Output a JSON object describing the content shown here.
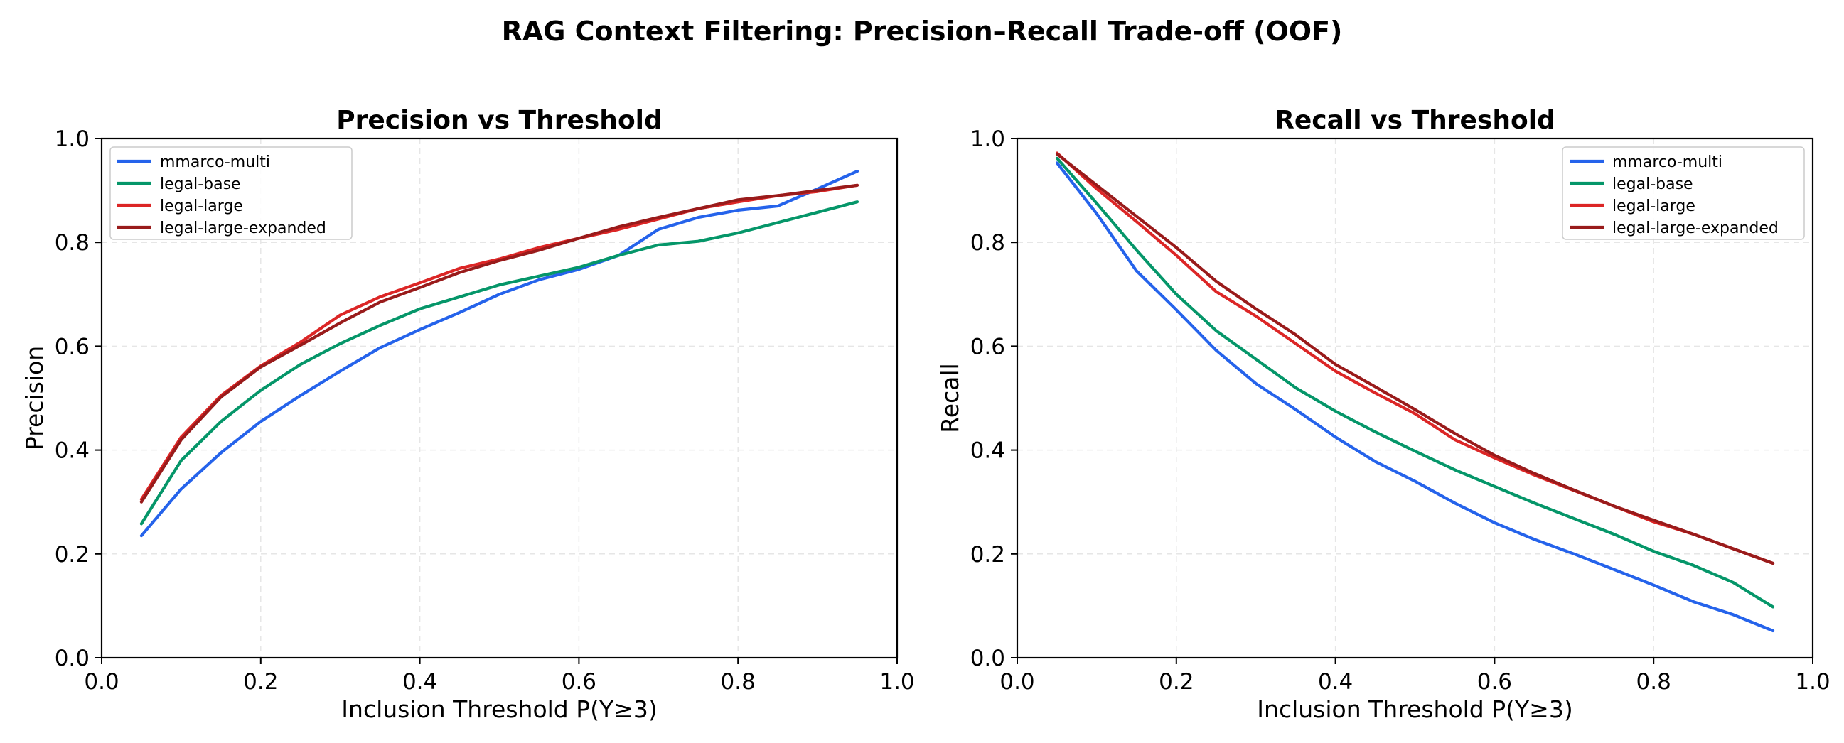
{
  "suptitle": "RAG Context Filtering: Precision–Recall Trade-off (OOF)",
  "colors": {
    "mmarco-multi": "#2563eb",
    "legal-base": "#059669",
    "legal-large": "#dc2626",
    "legal-large-expanded": "#991b1b"
  },
  "chart_data": [
    {
      "type": "line",
      "title": "Precision vs Threshold",
      "xlabel": "Inclusion Threshold P(Y≥3)",
      "ylabel": "Precision",
      "xlim": [
        0.0,
        1.0
      ],
      "ylim": [
        0.0,
        1.0
      ],
      "xticks": [
        0.0,
        0.2,
        0.4,
        0.6,
        0.8,
        1.0
      ],
      "xtick_labels": [
        "0.0",
        "0.2",
        "0.4",
        "0.6",
        "0.8",
        "1.0"
      ],
      "yticks": [
        0.0,
        0.2,
        0.4,
        0.6,
        0.8,
        1.0
      ],
      "ytick_labels": [
        "0.0",
        "0.2",
        "0.4",
        "0.6",
        "0.8",
        "1.0"
      ],
      "grid": true,
      "legend_position": "upper left",
      "x": [
        0.05,
        0.1,
        0.15,
        0.2,
        0.25,
        0.3,
        0.35,
        0.4,
        0.45,
        0.5,
        0.55,
        0.6,
        0.65,
        0.7,
        0.75,
        0.8,
        0.85,
        0.9,
        0.95
      ],
      "series": [
        {
          "name": "mmarco-multi",
          "values": [
            0.235,
            0.325,
            0.395,
            0.455,
            0.505,
            0.552,
            0.597,
            0.632,
            0.665,
            0.7,
            0.728,
            0.748,
            0.775,
            0.825,
            0.848,
            0.862,
            0.87,
            0.903,
            0.937
          ]
        },
        {
          "name": "legal-base",
          "values": [
            0.258,
            0.38,
            0.455,
            0.515,
            0.565,
            0.605,
            0.64,
            0.672,
            0.695,
            0.718,
            0.735,
            0.752,
            0.775,
            0.795,
            0.802,
            0.818,
            0.838,
            0.858,
            0.878
          ]
        },
        {
          "name": "legal-large",
          "values": [
            0.305,
            0.425,
            0.505,
            0.562,
            0.608,
            0.66,
            0.695,
            0.722,
            0.75,
            0.768,
            0.79,
            0.808,
            0.825,
            0.845,
            0.865,
            0.878,
            0.89,
            0.898,
            0.91
          ]
        },
        {
          "name": "legal-large-expanded",
          "values": [
            0.3,
            0.42,
            0.502,
            0.56,
            0.602,
            0.645,
            0.685,
            0.713,
            0.742,
            0.765,
            0.785,
            0.808,
            0.83,
            0.848,
            0.865,
            0.882,
            0.89,
            0.9,
            0.91
          ]
        }
      ]
    },
    {
      "type": "line",
      "title": "Recall vs Threshold",
      "xlabel": "Inclusion Threshold P(Y≥3)",
      "ylabel": "Recall",
      "xlim": [
        0.0,
        1.0
      ],
      "ylim": [
        0.0,
        1.0
      ],
      "xticks": [
        0.0,
        0.2,
        0.4,
        0.6,
        0.8,
        1.0
      ],
      "xtick_labels": [
        "0.0",
        "0.2",
        "0.4",
        "0.6",
        "0.8",
        "1.0"
      ],
      "yticks": [
        0.0,
        0.2,
        0.4,
        0.6,
        0.8,
        1.0
      ],
      "ytick_labels": [
        "0.0",
        "0.2",
        "0.4",
        "0.6",
        "0.8",
        "1.0"
      ],
      "grid": true,
      "legend_position": "upper right",
      "x": [
        0.05,
        0.1,
        0.15,
        0.2,
        0.25,
        0.3,
        0.35,
        0.4,
        0.45,
        0.5,
        0.55,
        0.6,
        0.65,
        0.7,
        0.75,
        0.8,
        0.85,
        0.9,
        0.95
      ],
      "series": [
        {
          "name": "mmarco-multi",
          "values": [
            0.953,
            0.855,
            0.745,
            0.67,
            0.592,
            0.528,
            0.478,
            0.425,
            0.378,
            0.34,
            0.298,
            0.26,
            0.228,
            0.2,
            0.17,
            0.14,
            0.108,
            0.083,
            0.052
          ]
        },
        {
          "name": "legal-base",
          "values": [
            0.962,
            0.875,
            0.785,
            0.7,
            0.63,
            0.575,
            0.52,
            0.475,
            0.435,
            0.398,
            0.362,
            0.33,
            0.298,
            0.268,
            0.238,
            0.205,
            0.178,
            0.145,
            0.098
          ]
        },
        {
          "name": "legal-large",
          "values": [
            0.972,
            0.903,
            0.84,
            0.775,
            0.705,
            0.658,
            0.605,
            0.552,
            0.51,
            0.47,
            0.42,
            0.385,
            0.352,
            0.322,
            0.292,
            0.262,
            0.238,
            0.21,
            0.182
          ]
        },
        {
          "name": "legal-large-expanded",
          "values": [
            0.97,
            0.91,
            0.85,
            0.79,
            0.725,
            0.672,
            0.622,
            0.565,
            0.522,
            0.478,
            0.432,
            0.39,
            0.355,
            0.323,
            0.292,
            0.265,
            0.238,
            0.21,
            0.182
          ]
        }
      ]
    }
  ]
}
